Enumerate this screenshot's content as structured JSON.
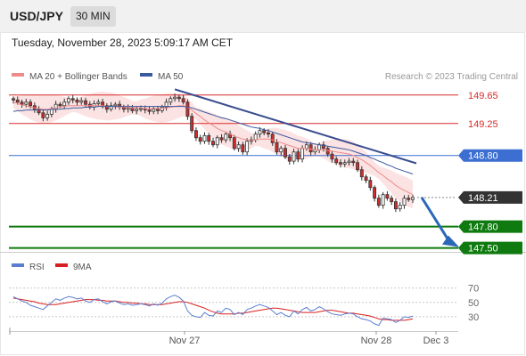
{
  "header": {
    "symbol": "USD/JPY",
    "timeframe": "30 MIN",
    "datetime": "Tuesday, November 28, 2023 5:09:17 AM CET"
  },
  "colors": {
    "resistance": "#d92a2a",
    "pivot": "#3c6fd1",
    "support": "#0f7a0f",
    "current": "#333333",
    "candle_up": "#ffffff",
    "candle_down": "#d12c2c",
    "bb_fill": "#fbdede",
    "ma20": "#ee8a8a",
    "ma50": "#3a5aa0",
    "trend_line": "#3a4d8f",
    "arrow": "#2b67b8",
    "rsi": "#5b7fd0",
    "rsi_ma": "#d92020"
  },
  "chart_data": [
    {
      "type": "candlestick",
      "legend": [
        {
          "label": "MA 20 + Bollinger Bands",
          "color": "#ee8a8a"
        },
        {
          "label": "MA 50",
          "color": "#3a5aa0"
        }
      ],
      "watermark": "Research © 2023 Trading Central",
      "ylim": [
        147.42,
        149.86
      ],
      "x_ticks": [
        "Nov 27",
        "Nov 28",
        "Dec 3"
      ],
      "levels": [
        {
          "value": 149.65,
          "label": "149.65",
          "kind": "resistance"
        },
        {
          "value": 149.25,
          "label": "149.25",
          "kind": "resistance"
        },
        {
          "value": 148.8,
          "label": "148.80",
          "kind": "pivot"
        },
        {
          "value": 148.21,
          "label": "148.21",
          "kind": "current"
        },
        {
          "value": 147.8,
          "label": "147.80",
          "kind": "support"
        },
        {
          "value": 147.5,
          "label": "147.50",
          "kind": "support"
        }
      ],
      "closes": [
        149.58,
        149.55,
        149.52,
        149.55,
        149.5,
        149.45,
        149.4,
        149.33,
        149.38,
        149.45,
        149.52,
        149.5,
        149.55,
        149.6,
        149.58,
        149.55,
        149.57,
        149.52,
        149.48,
        149.53,
        149.55,
        149.5,
        149.45,
        149.5,
        149.52,
        149.48,
        149.45,
        149.47,
        149.43,
        149.45,
        149.46,
        149.44,
        149.42,
        149.45,
        149.43,
        149.48,
        149.55,
        149.6,
        149.62,
        149.6,
        149.55,
        149.35,
        149.15,
        149.05,
        149.0,
        149.08,
        149.0,
        148.95,
        149.05,
        149.02,
        149.1,
        149.05,
        148.9,
        148.95,
        148.85,
        149.0,
        149.02,
        149.1,
        149.15,
        149.12,
        149.1,
        148.98,
        148.85,
        148.9,
        148.78,
        148.72,
        148.85,
        148.75,
        148.9,
        148.95,
        148.85,
        148.88,
        148.95,
        148.9,
        148.82,
        148.75,
        148.7,
        148.68,
        148.7,
        148.72,
        148.7,
        148.6,
        148.5,
        148.45,
        148.35,
        148.2,
        148.1,
        148.25,
        148.2,
        148.15,
        148.05,
        148.1,
        148.2,
        148.18,
        148.21
      ],
      "ma20": [
        149.55,
        149.53,
        149.51,
        149.5,
        149.48,
        149.47,
        149.46,
        149.45,
        149.45,
        149.46,
        149.47,
        149.48,
        149.49,
        149.5,
        149.5,
        149.5,
        149.5,
        149.5,
        149.5,
        149.5,
        149.5,
        149.5,
        149.49,
        149.49,
        149.49,
        149.48,
        149.48,
        149.48,
        149.47,
        149.47,
        149.47,
        149.46,
        149.46,
        149.46,
        149.46,
        149.46,
        149.47,
        149.48,
        149.49,
        149.5,
        149.5,
        149.48,
        149.44,
        149.39,
        149.35,
        149.3,
        149.26,
        149.22,
        149.18,
        149.15,
        149.13,
        149.1,
        149.07,
        149.05,
        149.03,
        149.02,
        149.01,
        149.02,
        149.03,
        149.03,
        149.03,
        149.02,
        149.0,
        148.98,
        148.96,
        148.94,
        148.92,
        148.9,
        148.9,
        148.9,
        148.89,
        148.88,
        148.88,
        148.88,
        148.87,
        148.86,
        148.85,
        148.84,
        148.83,
        148.82,
        148.8,
        148.77,
        148.74,
        148.7,
        148.66,
        148.61,
        148.56,
        148.52,
        148.47,
        148.43,
        148.38,
        148.34,
        148.31,
        148.28,
        148.25
      ],
      "ma50": [
        149.42,
        149.43,
        149.43,
        149.44,
        149.44,
        149.44,
        149.44,
        149.44,
        149.44,
        149.45,
        149.45,
        149.45,
        149.46,
        149.46,
        149.47,
        149.47,
        149.47,
        149.48,
        149.48,
        149.48,
        149.49,
        149.49,
        149.49,
        149.49,
        149.49,
        149.49,
        149.49,
        149.49,
        149.49,
        149.49,
        149.49,
        149.49,
        149.49,
        149.49,
        149.49,
        149.49,
        149.49,
        149.49,
        149.49,
        149.49,
        149.49,
        149.48,
        149.47,
        149.45,
        149.43,
        149.41,
        149.39,
        149.37,
        149.35,
        149.33,
        149.32,
        149.3,
        149.28,
        149.26,
        149.24,
        149.22,
        149.2,
        149.19,
        149.18,
        149.16,
        149.15,
        149.13,
        149.11,
        149.09,
        149.07,
        149.05,
        149.03,
        149.01,
        148.99,
        148.98,
        148.97,
        148.96,
        148.95,
        148.94,
        148.93,
        148.92,
        148.91,
        148.9,
        148.89,
        148.88,
        148.86,
        148.84,
        148.82,
        148.8,
        148.77,
        148.75,
        148.72,
        148.7,
        148.67,
        148.65,
        148.62,
        148.6,
        148.58,
        148.56,
        148.54
      ]
    },
    {
      "type": "line",
      "legend": [
        {
          "label": "RSI",
          "color": "#5b7fd0"
        },
        {
          "label": "9MA",
          "color": "#d92020"
        }
      ],
      "y_ticks": [
        "70",
        "50",
        "30"
      ],
      "ylim": [
        10,
        82
      ],
      "rsi": [
        58,
        55,
        52,
        50,
        46,
        44,
        42,
        40,
        45,
        50,
        55,
        53,
        56,
        58,
        57,
        55,
        56,
        52,
        50,
        54,
        55,
        51,
        48,
        51,
        52,
        49,
        47,
        48,
        46,
        47,
        48,
        47,
        45,
        48,
        46,
        49,
        55,
        58,
        60,
        57,
        52,
        38,
        32,
        30,
        29,
        36,
        32,
        31,
        38,
        36,
        42,
        40,
        33,
        36,
        33,
        40,
        42,
        45,
        47,
        45,
        43,
        38,
        33,
        36,
        32,
        30,
        38,
        34,
        40,
        43,
        38,
        40,
        44,
        41,
        37,
        34,
        33,
        32,
        34,
        35,
        34,
        30,
        27,
        26,
        24,
        20,
        18,
        28,
        27,
        26,
        22,
        25,
        30,
        29,
        31
      ],
      "ma9": [
        56,
        55,
        54,
        53,
        52,
        51,
        49,
        48,
        47,
        47,
        47,
        48,
        49,
        50,
        51,
        52,
        53,
        54,
        54,
        54,
        53,
        53,
        52,
        52,
        52,
        51,
        50,
        50,
        49,
        49,
        48,
        48,
        47,
        47,
        47,
        47,
        48,
        49,
        50,
        51,
        51,
        50,
        48,
        46,
        44,
        42,
        39,
        37,
        35,
        34,
        34,
        34,
        34,
        35,
        35,
        36,
        37,
        38,
        39,
        40,
        41,
        42,
        42,
        41,
        40,
        39,
        38,
        37,
        36,
        36,
        36,
        36,
        37,
        38,
        39,
        39,
        38,
        37,
        36,
        35,
        35,
        34,
        33,
        32,
        31,
        29,
        27,
        26,
        26,
        25,
        25,
        25,
        25,
        26,
        27
      ]
    }
  ]
}
